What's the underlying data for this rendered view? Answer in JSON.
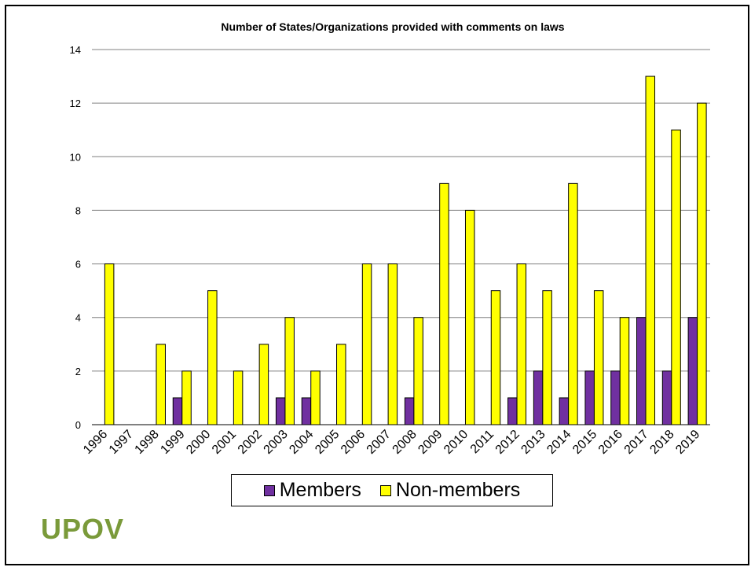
{
  "chart_data": {
    "type": "bar",
    "title": "Number of States/Organizations provided with comments on laws",
    "xlabel": "",
    "ylabel": "",
    "categories": [
      "1996",
      "1997",
      "1998",
      "1999",
      "2000",
      "2001",
      "2002",
      "2003",
      "2004",
      "2005",
      "2006",
      "2007",
      "2008",
      "2009",
      "2010",
      "2011",
      "2012",
      "2013",
      "2014",
      "2015",
      "2016",
      "2017",
      "2018",
      "2019"
    ],
    "ylim": [
      0,
      14
    ],
    "yticks": [
      0,
      2,
      4,
      6,
      8,
      10,
      12,
      14
    ],
    "grid": "horizontal",
    "legend_placement": "bottom",
    "series": [
      {
        "name": "Members",
        "color": "#7030a0",
        "values": [
          0,
          0,
          0,
          1,
          0,
          0,
          0,
          1,
          1,
          0,
          0,
          0,
          1,
          0,
          0,
          0,
          1,
          2,
          1,
          2,
          2,
          4,
          2,
          4
        ]
      },
      {
        "name": "Non-members",
        "color": "#ffff00",
        "values": [
          6,
          0,
          3,
          2,
          5,
          2,
          3,
          4,
          2,
          3,
          6,
          6,
          4,
          9,
          8,
          5,
          6,
          5,
          9,
          5,
          4,
          13,
          11,
          12
        ]
      }
    ]
  },
  "logo": {
    "text": "UPOV"
  }
}
